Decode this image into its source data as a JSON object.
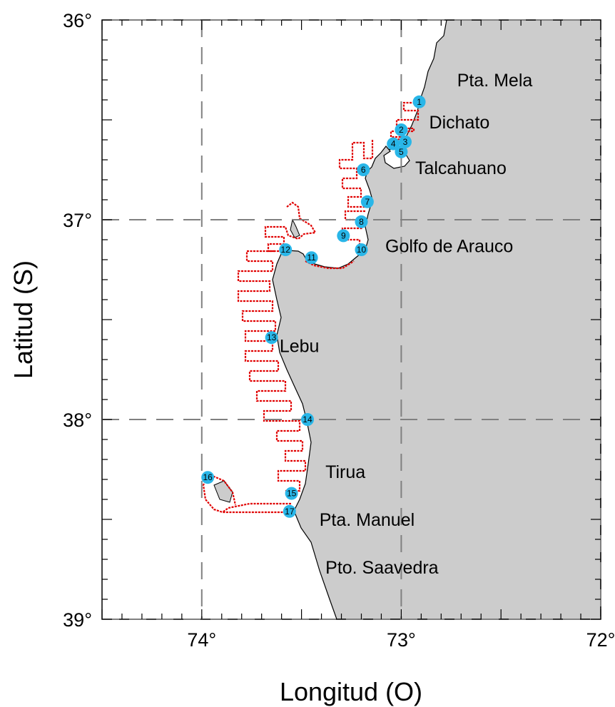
{
  "axes": {
    "xlabel": "Longitud (O)",
    "ylabel": "Latitud (S)",
    "xlim": [
      -74.5,
      -72
    ],
    "ylim": [
      -39,
      -36
    ],
    "xtick_labels": [
      {
        "value": -74,
        "label": "74°"
      },
      {
        "value": -73,
        "label": "73°"
      },
      {
        "value": -72,
        "label": "72°"
      }
    ],
    "ytick_labels": [
      {
        "value": -36,
        "label": "36°"
      },
      {
        "value": -37,
        "label": "37°"
      },
      {
        "value": -38,
        "label": "38°"
      },
      {
        "value": -39,
        "label": "39°"
      }
    ],
    "dashed_grid": true
  },
  "places": [
    {
      "name": "Pta. Mela",
      "lon": -72.72,
      "lat": -36.3
    },
    {
      "name": "Dichato",
      "lon": -72.86,
      "lat": -36.51
    },
    {
      "name": "Talcahuano",
      "lon": -72.93,
      "lat": -36.74
    },
    {
      "name": "Golfo de Arauco",
      "lon": -73.08,
      "lat": -37.13
    },
    {
      "name": "Lebu",
      "lon": -73.61,
      "lat": -37.63
    },
    {
      "name": "Tirua",
      "lon": -73.38,
      "lat": -38.26
    },
    {
      "name": "Pta. Manuel",
      "lon": -73.41,
      "lat": -38.5
    },
    {
      "name": "Pto. Saavedra",
      "lon": -73.38,
      "lat": -38.74
    }
  ],
  "stations": [
    {
      "id": "1",
      "lon": -72.91,
      "lat": -36.41
    },
    {
      "id": "2",
      "lon": -73.0,
      "lat": -36.55
    },
    {
      "id": "3",
      "lon": -72.98,
      "lat": -36.61
    },
    {
      "id": "4",
      "lon": -73.04,
      "lat": -36.62
    },
    {
      "id": "5",
      "lon": -73.0,
      "lat": -36.66
    },
    {
      "id": "6",
      "lon": -73.19,
      "lat": -36.75
    },
    {
      "id": "7",
      "lon": -73.17,
      "lat": -36.91
    },
    {
      "id": "8",
      "lon": -73.2,
      "lat": -37.01
    },
    {
      "id": "9",
      "lon": -73.29,
      "lat": -37.08
    },
    {
      "id": "10",
      "lon": -73.2,
      "lat": -37.15
    },
    {
      "id": "11",
      "lon": -73.45,
      "lat": -37.19
    },
    {
      "id": "12",
      "lon": -73.58,
      "lat": -37.15
    },
    {
      "id": "13",
      "lon": -73.65,
      "lat": -37.59
    },
    {
      "id": "14",
      "lon": -73.47,
      "lat": -38.0
    },
    {
      "id": "15",
      "lon": -73.55,
      "lat": -38.37
    },
    {
      "id": "16",
      "lon": -73.97,
      "lat": -38.29
    },
    {
      "id": "17",
      "lon": -73.56,
      "lat": -38.46
    }
  ],
  "colors": {
    "land": "#cccccc",
    "coastline": "#000000",
    "track": "#e00000",
    "station": "#29b6e8",
    "grid": "#808080"
  }
}
